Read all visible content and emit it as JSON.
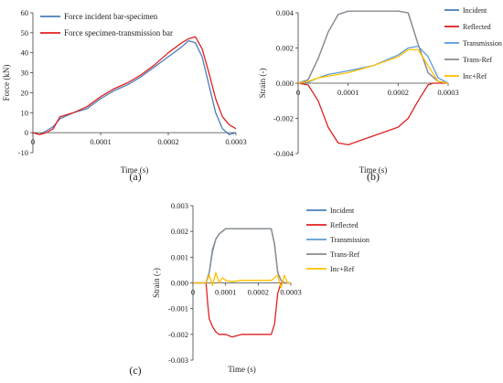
{
  "colors": {
    "incident": "#4A7EBB",
    "reflected": "#E02020",
    "transmission": "#5B9BD5",
    "trans_ref": "#8C8C8C",
    "inc_ref": "#FFC000",
    "axis": "#404040"
  },
  "panel_labels": [
    "(a)",
    "(b)",
    "(c)"
  ],
  "chart_data": [
    {
      "type": "line",
      "panel": "(a)",
      "xlabel": "Time (s)",
      "ylabel": "Force (kN)",
      "xlim": [
        0,
        0.0003
      ],
      "ylim": [
        -10,
        60
      ],
      "x_ticks": [
        0,
        0.0001,
        0.0002,
        0.0003
      ],
      "x_tick_labels": [
        "0",
        "0.0001",
        "0.0002",
        "0.0003"
      ],
      "y_ticks": [
        -10,
        0,
        10,
        20,
        30,
        40,
        50,
        60
      ],
      "y_tick_labels": [
        "-10",
        "0",
        "10",
        "20",
        "30",
        "40",
        "50",
        "60"
      ],
      "legend_position": "top-left",
      "series": [
        {
          "name": "Force incident bar-specimen",
          "color": "#4A7EBB",
          "x": [
            0,
            1e-05,
            2e-05,
            3e-05,
            4e-05,
            6e-05,
            8e-05,
            0.0001,
            0.00012,
            0.00014,
            0.00016,
            0.00018,
            0.0002,
            0.00022,
            0.00023,
            0.00024,
            0.00025,
            0.00026,
            0.00027,
            0.00028,
            0.00029,
            0.0003
          ],
          "y": [
            0,
            -1,
            1,
            3,
            7,
            10,
            12,
            17,
            21,
            24,
            28,
            33,
            38,
            43,
            46,
            45,
            38,
            24,
            10,
            2,
            -1,
            0
          ]
        },
        {
          "name": "Force specimen-transmission bar",
          "color": "#E02020",
          "x": [
            0,
            1e-05,
            2e-05,
            3e-05,
            4e-05,
            6e-05,
            8e-05,
            0.0001,
            0.00012,
            0.00014,
            0.00016,
            0.00018,
            0.0002,
            0.00022,
            0.00023,
            0.00024,
            0.00025,
            0.00026,
            0.00027,
            0.00028,
            0.00029,
            0.0003
          ],
          "y": [
            0,
            -1,
            0,
            2,
            8,
            10,
            13,
            18,
            22,
            25,
            29,
            34,
            40,
            45,
            47,
            48,
            42,
            30,
            17,
            8,
            4,
            2
          ]
        }
      ]
    },
    {
      "type": "line",
      "panel": "(b)",
      "xlabel": "Time (s)",
      "ylabel": "Strain (-)",
      "xlim": [
        0,
        0.0003
      ],
      "ylim": [
        -0.004,
        0.004
      ],
      "x_ticks": [
        0,
        0.0001,
        0.0002,
        0.0003
      ],
      "x_tick_labels": [
        "0",
        "0.0001",
        "0.0002",
        "0.0003"
      ],
      "y_ticks": [
        -0.004,
        -0.002,
        0,
        0.002,
        0.004
      ],
      "y_tick_labels": [
        "-0.004",
        "-0.002",
        "0.000",
        "0.002",
        "0.004"
      ],
      "legend_position": "right",
      "series": [
        {
          "name": "Incident",
          "color": "#4A7EBB",
          "x": [
            0,
            2e-05,
            4e-05,
            6e-05,
            8e-05,
            0.0001,
            0.00015,
            0.0002,
            0.00022,
            0.00024,
            0.00026,
            0.00028,
            0.0003
          ],
          "y": [
            0,
            0.0002,
            0.0014,
            0.0029,
            0.0039,
            0.0041,
            0.0041,
            0.0041,
            0.004,
            0.0022,
            0.0006,
            0.0001,
            0.0
          ]
        },
        {
          "name": "Reflected",
          "color": "#E02020",
          "x": [
            0,
            2e-05,
            4e-05,
            6e-05,
            8e-05,
            0.0001,
            0.00012,
            0.00015,
            0.0002,
            0.00022,
            0.00024,
            0.00026,
            0.00027,
            0.0003
          ],
          "y": [
            0,
            -0.0001,
            -0.001,
            -0.0025,
            -0.0034,
            -0.0035,
            -0.0033,
            -0.003,
            -0.0025,
            -0.002,
            -0.001,
            -0.0001,
            0.0,
            0.0
          ]
        },
        {
          "name": "Transmission",
          "color": "#5B9BD5",
          "x": [
            0,
            2e-05,
            4e-05,
            6e-05,
            8e-05,
            0.0001,
            0.00015,
            0.0002,
            0.00022,
            0.00024,
            0.00026,
            0.00028,
            0.0003
          ],
          "y": [
            0,
            5e-05,
            0.0003,
            0.0005,
            0.0006,
            0.0007,
            0.001,
            0.0016,
            0.002,
            0.0021,
            0.0015,
            0.0003,
            0.0
          ]
        },
        {
          "name": "Trans-Ref",
          "color": "#8C8C8C",
          "x": [
            0,
            2e-05,
            4e-05,
            6e-05,
            8e-05,
            0.0001,
            0.00015,
            0.0002,
            0.00022,
            0.00024,
            0.00026,
            0.00028,
            0.0003
          ],
          "y": [
            0,
            0.0002,
            0.0014,
            0.0029,
            0.0039,
            0.0041,
            0.0041,
            0.0041,
            0.004,
            0.0022,
            0.0006,
            0.0001,
            0.0
          ]
        },
        {
          "name": "Inc+Ref",
          "color": "#FFC000",
          "x": [
            0,
            2e-05,
            4e-05,
            6e-05,
            8e-05,
            0.0001,
            0.00015,
            0.0002,
            0.00022,
            0.00024,
            0.00026,
            0.00028,
            0.0003
          ],
          "y": [
            0,
            0.0001,
            0.0003,
            0.0004,
            0.0005,
            0.0006,
            0.001,
            0.0015,
            0.0019,
            0.0019,
            0.001,
            0.0001,
            0.0
          ]
        }
      ]
    },
    {
      "type": "line",
      "panel": "(c)",
      "xlabel": "Time (s)",
      "ylabel": "Strain (-)",
      "xlim": [
        0,
        0.0003
      ],
      "ylim": [
        -0.003,
        0.003
      ],
      "x_ticks": [
        0,
        0.0001,
        0.0002,
        0.0003
      ],
      "x_tick_labels": [
        "0",
        "0.0001",
        "0.0002",
        "0.0003"
      ],
      "y_ticks": [
        -0.003,
        -0.002,
        -0.001,
        0,
        0.001,
        0.002,
        0.003
      ],
      "y_tick_labels": [
        "-0.003",
        "-0.002",
        "-0.001",
        "0.000",
        "0.001",
        "0.002",
        "0.003"
      ],
      "legend_position": "right",
      "series": [
        {
          "name": "Incident",
          "color": "#4A7EBB",
          "x": [
            0,
            4e-05,
            5e-05,
            6e-05,
            7e-05,
            8e-05,
            9e-05,
            0.0001,
            0.00015,
            0.0002,
            0.00024,
            0.00025,
            0.00026,
            0.00027,
            0.00028,
            0.0003
          ],
          "y": [
            0,
            0,
            0.0004,
            0.0013,
            0.0017,
            0.0019,
            0.002,
            0.0021,
            0.0021,
            0.0021,
            0.0021,
            0.0015,
            0.0004,
            0.0001,
            0,
            0
          ]
        },
        {
          "name": "Reflected",
          "color": "#E02020",
          "x": [
            0,
            4e-05,
            4.5e-05,
            5e-05,
            6e-05,
            7e-05,
            8e-05,
            0.0001,
            0.00012,
            0.00015,
            0.0002,
            0.00024,
            0.00025,
            0.00026,
            0.00027,
            0.0003
          ],
          "y": [
            0,
            0,
            -0.0008,
            -0.0014,
            -0.0017,
            -0.0019,
            -0.002,
            -0.002,
            -0.0021,
            -0.002,
            -0.002,
            -0.002,
            -0.0016,
            -0.0004,
            0,
            0
          ]
        },
        {
          "name": "Transmission",
          "color": "#5B9BD5",
          "x": [
            0,
            4e-05,
            5e-05,
            6e-05,
            7e-05,
            8e-05,
            9e-05,
            0.0001,
            0.00015,
            0.0002,
            0.00024,
            0.00025,
            0.00026,
            0.00027,
            0.00028,
            0.0003
          ],
          "y": [
            0,
            0,
            0.0004,
            0.0013,
            0.0017,
            0.0019,
            0.002,
            0.0021,
            0.0021,
            0.0021,
            0.0021,
            0.0015,
            0.0004,
            0.0001,
            0,
            0
          ]
        },
        {
          "name": "Trans-Ref",
          "color": "#8C8C8C",
          "x": [
            0,
            4e-05,
            5e-05,
            6e-05,
            7e-05,
            8e-05,
            9e-05,
            0.0001,
            0.00015,
            0.0002,
            0.00024,
            0.00025,
            0.00026,
            0.00027,
            0.00028,
            0.0003
          ],
          "y": [
            0,
            0,
            0.0004,
            0.0012,
            0.0017,
            0.0019,
            0.002,
            0.0021,
            0.0021,
            0.0021,
            0.0021,
            0.0015,
            0.0004,
            0.0001,
            0,
            0
          ]
        },
        {
          "name": "Inc+Ref",
          "color": "#FFC000",
          "x": [
            0,
            4e-05,
            5e-05,
            6e-05,
            7e-05,
            8e-05,
            9e-05,
            0.0001,
            0.00012,
            0.00015,
            0.0002,
            0.00024,
            0.00026,
            0.00027,
            0.00028,
            0.00029,
            0.0003
          ],
          "y": [
            0,
            0,
            0.0003,
            -0.0001,
            0.0004,
            0.0,
            0.0002,
            0.0001,
            5e-05,
            0.0001,
            0.0001,
            0.0001,
            0.0003,
            -0.0002,
            0.0003,
            0.0,
            0
          ]
        }
      ]
    }
  ]
}
